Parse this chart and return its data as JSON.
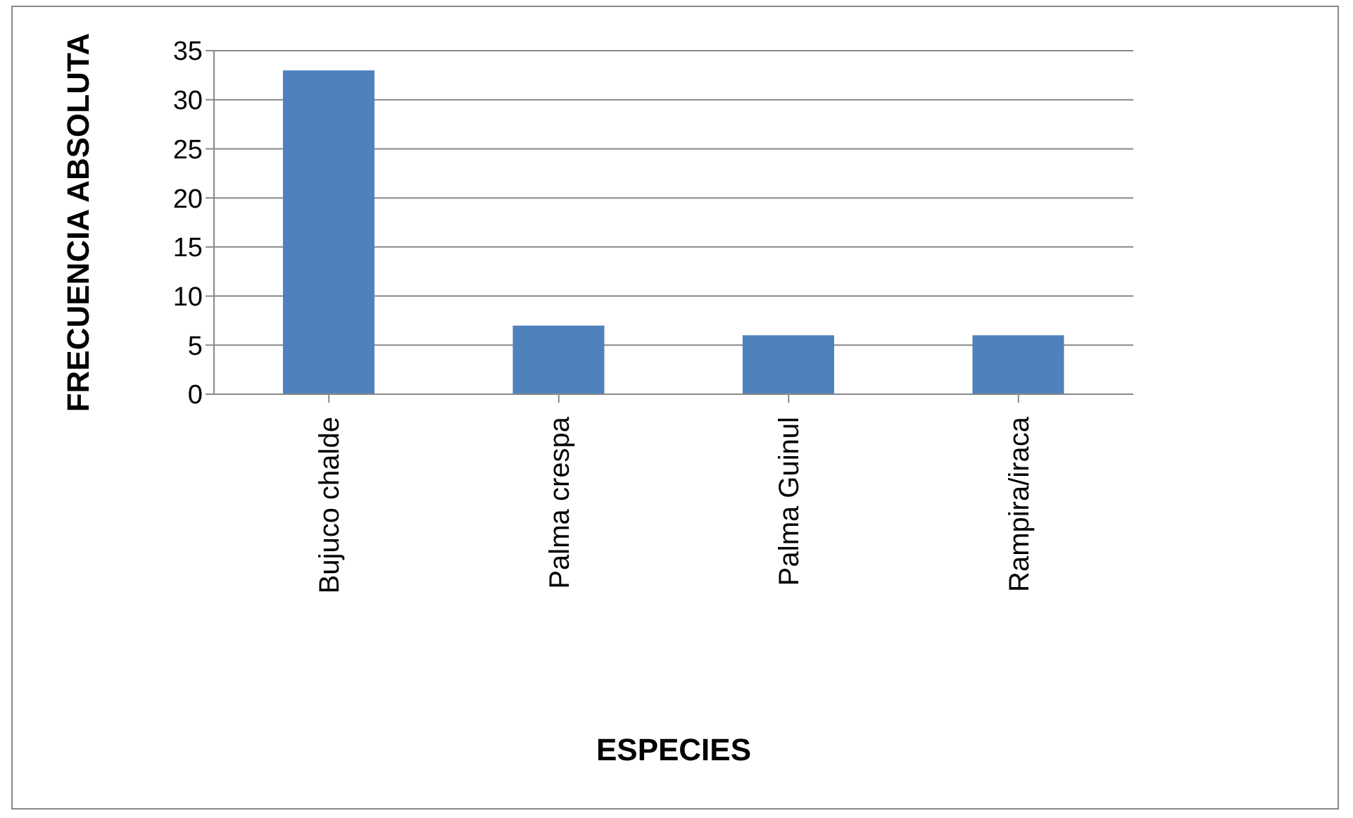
{
  "chart_data": {
    "type": "bar",
    "xlabel": "ESPECIES",
    "ylabel": "FRECUENCIA ABSOLUTA",
    "categories": [
      "Bujuco chalde",
      "Palma crespa",
      "Palma Guinul",
      "Rampira/iraca"
    ],
    "values": [
      33,
      7,
      6,
      6
    ],
    "color": "#4f81bd",
    "ylim": [
      0,
      35
    ],
    "yticks": [
      0,
      5,
      10,
      15,
      20,
      25,
      30,
      35
    ],
    "grid": "y",
    "legend": false
  }
}
